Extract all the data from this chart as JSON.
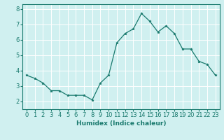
{
  "x": [
    0,
    1,
    2,
    3,
    4,
    5,
    6,
    7,
    8,
    9,
    10,
    11,
    12,
    13,
    14,
    15,
    16,
    17,
    18,
    19,
    20,
    21,
    22,
    23
  ],
  "y": [
    3.7,
    3.5,
    3.2,
    2.7,
    2.7,
    2.4,
    2.4,
    2.4,
    2.1,
    3.2,
    3.7,
    5.8,
    6.4,
    6.7,
    7.7,
    7.2,
    6.5,
    6.9,
    6.4,
    5.4,
    5.4,
    4.6,
    4.4,
    3.7
  ],
  "line_color": "#1a7a6e",
  "marker": "*",
  "marker_size": 2.5,
  "xlabel": "Humidex (Indice chaleur)",
  "bg_color": "#d0f0f0",
  "grid_color": "#ffffff",
  "xlim": [
    -0.5,
    23.5
  ],
  "ylim": [
    1.5,
    8.3
  ],
  "xtick_labels": [
    "0",
    "1",
    "2",
    "3",
    "4",
    "5",
    "6",
    "7",
    "8",
    "9",
    "10",
    "11",
    "12",
    "13",
    "14",
    "15",
    "16",
    "17",
    "18",
    "19",
    "20",
    "21",
    "22",
    "23"
  ],
  "yticks": [
    2,
    3,
    4,
    5,
    6,
    7,
    8
  ],
  "label_color": "#1a7a6e",
  "xlabel_fontsize": 6.5,
  "tick_fontsize": 6.0
}
